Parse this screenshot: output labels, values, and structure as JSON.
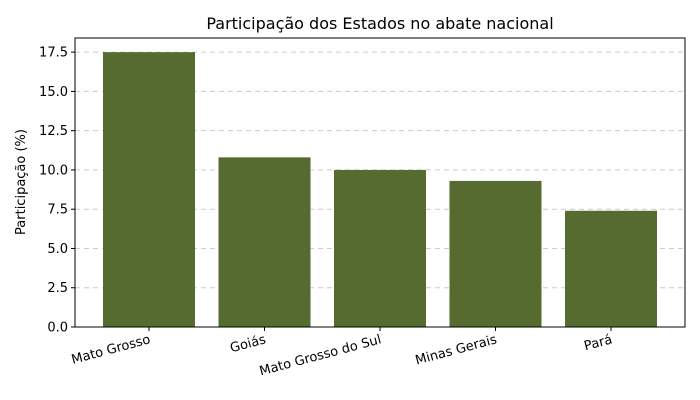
{
  "chart_data": {
    "type": "bar",
    "title": "Participação dos Estados no abate nacional",
    "xlabel": "",
    "ylabel": "Participação (%)",
    "categories": [
      "Mato Grosso",
      "Goiás",
      "Mato Grosso do Sul",
      "Minas Gerais",
      "Pará"
    ],
    "values": [
      17.5,
      10.8,
      10.0,
      9.3,
      7.4
    ],
    "ylim": [
      0,
      18.4
    ],
    "yticks": [
      "0.0",
      "2.5",
      "5.0",
      "7.5",
      "10.0",
      "12.5",
      "15.0",
      "17.5"
    ],
    "grid": true,
    "bar_color": "#556b2f"
  }
}
